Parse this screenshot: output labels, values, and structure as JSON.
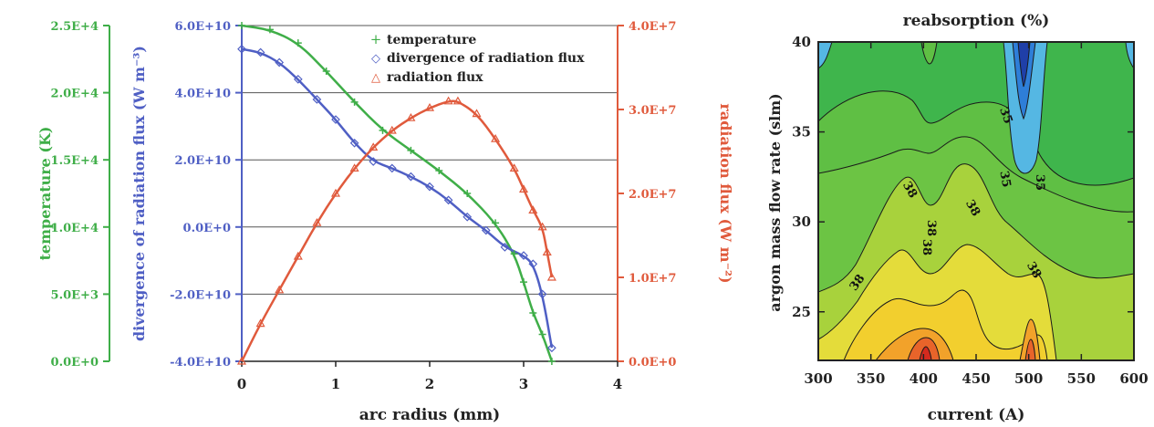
{
  "colors": {
    "temperature": "#3fae48",
    "divergence": "#4f5fc4",
    "radiation": "#e05a3c",
    "grid": "#555555",
    "axis": "#222222"
  },
  "chart_data": [
    {
      "type": "line",
      "x_axis": {
        "label": "arc radius (mm)",
        "ticks": [
          "0",
          "1",
          "2",
          "3",
          "4"
        ],
        "range": [
          0,
          4
        ]
      },
      "y_axes": [
        {
          "id": "temp",
          "label": "temperature (K)",
          "side": "far-left",
          "range": [
            0,
            25000
          ],
          "ticks": [
            "0.0E+0",
            "5.0E+3",
            "1.0E+4",
            "1.5E+4",
            "2.0E+4",
            "2.5E+4"
          ]
        },
        {
          "id": "div",
          "label": "divergence of radiation flux (W m⁻³)",
          "side": "left",
          "range": [
            -40000000000.0,
            60000000000.0
          ],
          "ticks": [
            "-4.0E+10",
            "-2.0E+10",
            "0.0E+0",
            "2.0E+10",
            "4.0E+10",
            "6.0E+10"
          ]
        },
        {
          "id": "rad",
          "label": "radiation flux (W m⁻²)",
          "side": "right",
          "range": [
            0,
            40000000.0
          ],
          "ticks": [
            "0.0E+0",
            "1.0E+7",
            "2.0E+7",
            "3.0E+7",
            "4.0E+7"
          ]
        }
      ],
      "legend": {
        "position": "top-right",
        "entries": [
          {
            "marker": "+",
            "text": "temperature"
          },
          {
            "marker": "◇",
            "text": "divergence of radiation flux"
          },
          {
            "marker": "△",
            "text": "radiation flux"
          }
        ]
      },
      "grid": "horizontal",
      "series": [
        {
          "name": "temperature",
          "axis": "temp",
          "marker": "plus",
          "x": [
            0,
            0.3,
            0.6,
            0.9,
            1.2,
            1.5,
            1.8,
            2.1,
            2.4,
            2.7,
            2.9,
            3.0,
            3.1,
            3.2,
            3.3
          ],
          "y": [
            25000,
            24700,
            23700,
            21600,
            19300,
            17200,
            15700,
            14200,
            12500,
            10300,
            8000,
            5900,
            3600,
            2000,
            0
          ]
        },
        {
          "name": "divergence of radiation flux",
          "axis": "div",
          "marker": "diamond",
          "x": [
            0,
            0.2,
            0.4,
            0.6,
            0.8,
            1.0,
            1.2,
            1.4,
            1.6,
            1.8,
            2.0,
            2.2,
            2.4,
            2.6,
            2.8,
            3.0,
            3.1,
            3.2,
            3.3
          ],
          "y": [
            53000000000.0,
            52000000000.0,
            49000000000.0,
            44000000000.0,
            38000000000.0,
            32000000000.0,
            25000000000.0,
            19500000000.0,
            17500000000.0,
            15000000000.0,
            12000000000.0,
            8000000000.0,
            3000000000.0,
            -1000000000.0,
            -6000000000.0,
            -8500000000.0,
            -11000000000.0,
            -20000000000.0,
            -36000000000.0
          ]
        },
        {
          "name": "radiation flux",
          "axis": "rad",
          "marker": "triangle",
          "x": [
            0,
            0.2,
            0.4,
            0.6,
            0.8,
            1.0,
            1.2,
            1.4,
            1.6,
            1.8,
            2.0,
            2.2,
            2.3,
            2.5,
            2.7,
            2.9,
            3.0,
            3.1,
            3.2,
            3.25,
            3.3
          ],
          "y": [
            0,
            4500000.0,
            8500000.0,
            12500000.0,
            16500000.0,
            20000000.0,
            23000000.0,
            25500000.0,
            27500000.0,
            29000000.0,
            30200000.0,
            31000000.0,
            31000000.0,
            29500000.0,
            26500000.0,
            23000000.0,
            20500000.0,
            18000000.0,
            16000000.0,
            13000000.0,
            10000000.0
          ]
        }
      ]
    },
    {
      "type": "heatmap",
      "subtype": "filled-contour",
      "title": "reabsorption (%)",
      "xlabel": "current (A)",
      "ylabel": "argon mass flow rate (slm)",
      "x_ticks": [
        "300",
        "350",
        "400",
        "450",
        "500",
        "550",
        "600"
      ],
      "xlim": [
        300,
        600
      ],
      "y_ticks": [
        "25",
        "30",
        "35",
        "40"
      ],
      "ylim": [
        22.3,
        40
      ],
      "contour_labels": [
        "35",
        "35",
        "35",
        "38",
        "38",
        "38",
        "38",
        "38",
        "38"
      ],
      "colorscale_low_to_high": [
        "#1f3fa8",
        "#2e7ed8",
        "#55b7e3",
        "#3fb54c",
        "#5fbf44",
        "#9ccc3c",
        "#d8dc3a",
        "#f0d030",
        "#f2a22a",
        "#e8642a",
        "#d42a1e"
      ]
    }
  ]
}
